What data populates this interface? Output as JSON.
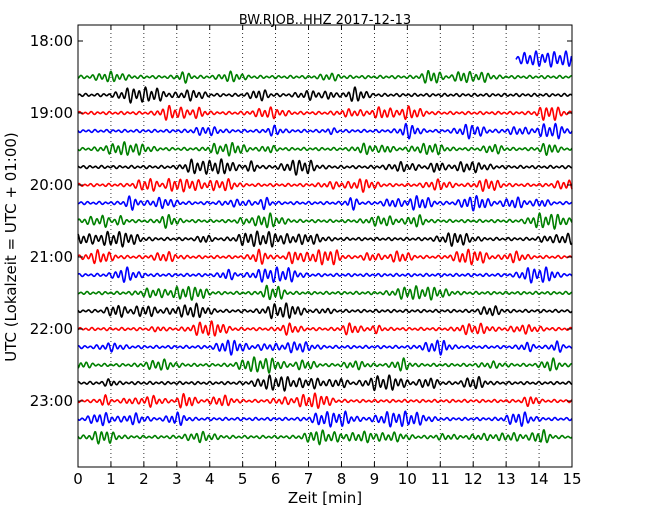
{
  "chart_data": {
    "type": "line",
    "title": "BW.RJOB..HHZ 2017-12-13",
    "xlabel": "Zeit  [min]",
    "ylabel": "UTC (Lokalzeit = UTC + 01:00)",
    "xlim": [
      0,
      15
    ],
    "x_ticks": [
      "0",
      "1",
      "2",
      "3",
      "4",
      "5",
      "6",
      "7",
      "8",
      "9",
      "10",
      "11",
      "12",
      "13",
      "14",
      "15"
    ],
    "y_ticks": [
      "18:00",
      "19:00",
      "20:00",
      "21:00",
      "22:00",
      "23:00"
    ],
    "grid": "vertical dotted",
    "trace_colors": [
      "#008000",
      "#000000",
      "#ff0000",
      "#0000ff"
    ],
    "traces": [
      {
        "start": "18:30",
        "x_range": [
          0,
          15
        ],
        "color": "#008000"
      },
      {
        "start": "18:45",
        "x_range": [
          0,
          15
        ],
        "color": "#000000"
      },
      {
        "start": "19:00",
        "x_range": [
          0,
          15
        ],
        "color": "#ff0000"
      },
      {
        "start": "19:15",
        "x_range": [
          0,
          15
        ],
        "color": "#0000ff"
      },
      {
        "start": "19:30",
        "x_range": [
          0,
          15
        ],
        "color": "#008000"
      },
      {
        "start": "19:45",
        "x_range": [
          0,
          15
        ],
        "color": "#000000"
      },
      {
        "start": "20:00",
        "x_range": [
          0,
          15
        ],
        "color": "#ff0000"
      },
      {
        "start": "20:15",
        "x_range": [
          0,
          15
        ],
        "color": "#0000ff"
      },
      {
        "start": "20:30",
        "x_range": [
          0,
          15
        ],
        "color": "#008000"
      },
      {
        "start": "20:45",
        "x_range": [
          0,
          15
        ],
        "color": "#000000"
      },
      {
        "start": "21:00",
        "x_range": [
          0,
          15
        ],
        "color": "#ff0000"
      },
      {
        "start": "21:15",
        "x_range": [
          0,
          15
        ],
        "color": "#0000ff"
      },
      {
        "start": "21:30",
        "x_range": [
          0,
          15
        ],
        "color": "#008000"
      },
      {
        "start": "21:45",
        "x_range": [
          0,
          15
        ],
        "color": "#000000"
      },
      {
        "start": "22:00",
        "x_range": [
          0,
          15
        ],
        "color": "#ff0000"
      },
      {
        "start": "22:15",
        "x_range": [
          0,
          15
        ],
        "color": "#0000ff"
      },
      {
        "start": "22:30",
        "x_range": [
          0,
          15
        ],
        "color": "#008000"
      },
      {
        "start": "22:45",
        "x_range": [
          0,
          15
        ],
        "color": "#000000"
      },
      {
        "start": "23:00",
        "x_range": [
          0,
          15
        ],
        "color": "#ff0000"
      },
      {
        "start": "23:15",
        "x_range": [
          0,
          15
        ],
        "color": "#0000ff"
      },
      {
        "start": "23:30",
        "x_range": [
          0,
          15
        ],
        "color": "#008000"
      },
      {
        "start": "18:15",
        "x_range": [
          13.3,
          15
        ],
        "color": "#0000ff"
      }
    ]
  }
}
